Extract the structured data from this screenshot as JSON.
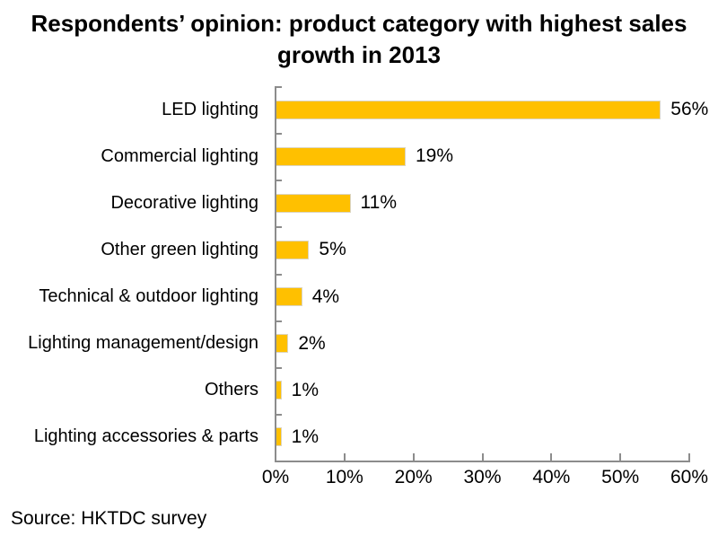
{
  "title_lines": [
    "Respondents’ opinion: product category with highest sales",
    "growth in 2013"
  ],
  "source": "Source: HKTDC survey",
  "colors": {
    "bar": "#FFC000",
    "bar_border": "#DBD5C1",
    "axis": "#8C8C8C",
    "text": "#000000",
    "background": "#FFFFFF"
  },
  "chart_data": {
    "type": "bar",
    "orientation": "horizontal",
    "title": "Respondents’ opinion: product category with highest sales growth in 2013",
    "categories": [
      "LED lighting",
      "Commercial lighting",
      "Decorative lighting",
      "Other green lighting",
      "Technical & outdoor lighting",
      "Lighting management/design",
      "Others",
      "Lighting accessories & parts"
    ],
    "values": [
      56,
      19,
      11,
      5,
      4,
      2,
      1,
      1
    ],
    "value_labels": [
      "56%",
      "19%",
      "11%",
      "5%",
      "4%",
      "2%",
      "1%",
      "1%"
    ],
    "xlabel": "",
    "ylabel": "",
    "xlim": [
      0,
      60
    ],
    "x_ticks": [
      0,
      10,
      20,
      30,
      40,
      50,
      60
    ],
    "x_tick_labels": [
      "0%",
      "10%",
      "20%",
      "30%",
      "40%",
      "50%",
      "60%"
    ],
    "grid": false,
    "legend": false,
    "source": "Source: HKTDC survey"
  }
}
